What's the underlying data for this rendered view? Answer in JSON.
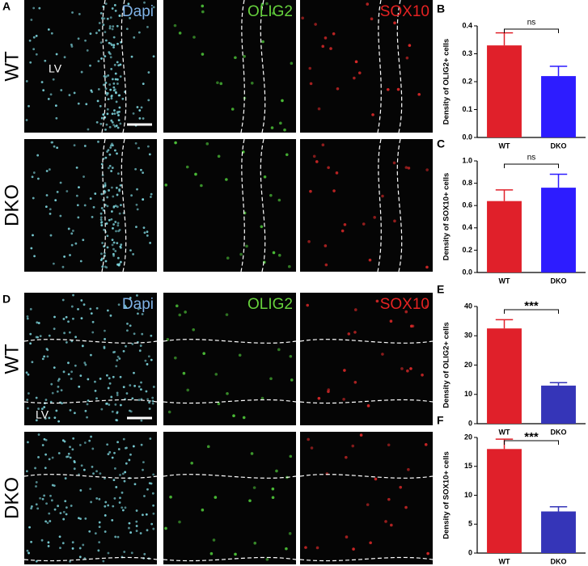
{
  "figure": {
    "top": {
      "label": "A",
      "channels": [
        "Dapi",
        "OLIG2",
        "SOX10"
      ],
      "rows": [
        "WT",
        "DKO"
      ],
      "region": "LV"
    },
    "bottom": {
      "label": "D",
      "channels": [
        "Dapi",
        "OLIG2",
        "SOX10"
      ],
      "rows": [
        "WT",
        "DKO"
      ],
      "region": "LV"
    }
  },
  "chart_data": [
    {
      "type": "bar",
      "panel": "B",
      "ylabel": "Density of OLIG2+ cells",
      "categories": [
        "WT",
        "DKO"
      ],
      "values": [
        0.33,
        0.22
      ],
      "errors": [
        0.045,
        0.035
      ],
      "colors": [
        "#e0202a",
        "#2d1cff"
      ],
      "ylim": [
        0,
        0.4
      ],
      "yticks": [
        {
          "value": 0,
          "label": "0.0"
        },
        0.1,
        0.2,
        0.3,
        0.4
      ],
      "significance": "ns"
    },
    {
      "type": "bar",
      "panel": "C",
      "ylabel": "Density of SOX10+ cells",
      "categories": [
        "WT",
        "DKO"
      ],
      "values": [
        0.64,
        0.76
      ],
      "errors": [
        0.1,
        0.12
      ],
      "colors": [
        "#e0202a",
        "#2d1cff"
      ],
      "ylim": [
        0,
        1.0
      ],
      "yticks": [
        {
          "value": 0,
          "label": "0.0"
        },
        0.2,
        0.4,
        0.6,
        0.8,
        {
          "value": 1,
          "label": "1.0"
        }
      ],
      "significance": "ns"
    },
    {
      "type": "bar",
      "panel": "E",
      "ylabel": "Density of OLIG2+ cells",
      "categories": [
        "WT",
        "DKO"
      ],
      "values": [
        32.5,
        13
      ],
      "errors": [
        3,
        1
      ],
      "colors": [
        "#e0202a",
        "#3535b8"
      ],
      "ylim": [
        0,
        40
      ],
      "yticks": [
        0,
        10,
        20,
        30,
        40
      ],
      "significance": "***"
    },
    {
      "type": "bar",
      "panel": "F",
      "ylabel": "Density of SOX10+ cells",
      "categories": [
        "WT",
        "DKO"
      ],
      "values": [
        18,
        7.2
      ],
      "errors": [
        1.7,
        0.8
      ],
      "colors": [
        "#e0202a",
        "#3535b8"
      ],
      "ylim": [
        0,
        20
      ],
      "yticks": [
        0,
        5,
        10,
        15,
        20
      ],
      "significance": "***"
    }
  ]
}
